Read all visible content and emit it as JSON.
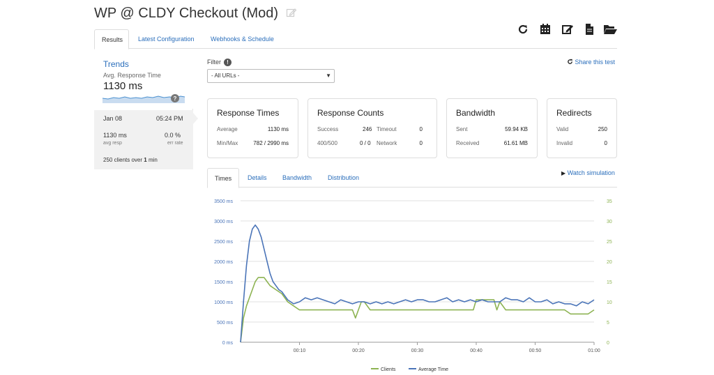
{
  "header": {
    "title": "WP @ CLDY Checkout (Mod)",
    "edit_icon": "edit-icon"
  },
  "tabs": [
    {
      "label": "Results",
      "active": true
    },
    {
      "label": "Latest Configuration",
      "active": false
    },
    {
      "label": "Webhooks & Schedule",
      "active": false
    }
  ],
  "toolbar": {
    "icons": [
      "refresh-icon",
      "calendar-icon",
      "edit-icon",
      "file-icon",
      "folder-open-icon"
    ]
  },
  "sidebar": {
    "trends_label": "Trends",
    "avg_label": "Avg. Response Time",
    "avg_value": "1130 ms",
    "spark_badge": "?",
    "date": "Jan 08",
    "time": "05:24 PM",
    "avg_resp_value": "1130 ms",
    "avg_resp_label": "avg resp",
    "err_rate_value": "0.0 %",
    "err_rate_label": "err rate",
    "clients_prefix": "250 clients over ",
    "clients_duration": "1",
    "clients_unit": " min"
  },
  "filter": {
    "label": "Filter",
    "info": "!",
    "selected": "- All URLs -"
  },
  "share_label": "Share this test",
  "cards": {
    "response_times": {
      "title": "Response Times",
      "avg_label": "Average",
      "avg_value": "1130 ms",
      "minmax_label": "Min/Max",
      "minmax_value": "782 / 2990 ms"
    },
    "response_counts": {
      "title": "Response Counts",
      "success_label": "Success",
      "success_value": "246",
      "timeout_label": "Timeout",
      "timeout_value": "0",
      "c400_label": "400/500",
      "c400_value": "0 / 0",
      "network_label": "Network",
      "network_value": "0"
    },
    "bandwidth": {
      "title": "Bandwidth",
      "sent_label": "Sent",
      "sent_value": "59.94 KB",
      "received_label": "Received",
      "received_value": "61.61 MB"
    },
    "redirects": {
      "title": "Redirects",
      "valid_label": "Valid",
      "valid_value": "250",
      "invalid_label": "Invalid",
      "invalid_value": "0"
    }
  },
  "chart_tabs": [
    {
      "label": "Times",
      "active": true
    },
    {
      "label": "Details",
      "active": false
    },
    {
      "label": "Bandwidth",
      "active": false
    },
    {
      "label": "Distribution",
      "active": false
    }
  ],
  "watch_label": "Watch simulation",
  "chart_data": {
    "type": "line",
    "y_left_ticks": [
      "0 ms",
      "500 ms",
      "1000 ms",
      "1500 ms",
      "2000 ms",
      "2500 ms",
      "3000 ms",
      "3500 ms"
    ],
    "y_right_ticks": [
      "0",
      "5",
      "10",
      "15",
      "20",
      "25",
      "30",
      "35"
    ],
    "x_ticks": [
      "00:10",
      "00:20",
      "00:30",
      "00:40",
      "00:50",
      "01:00"
    ],
    "xlim": [
      0,
      60
    ],
    "ylim_left": [
      0,
      3500
    ],
    "ylim_right": [
      0,
      35
    ],
    "colors": {
      "clients": "#8db352",
      "avg_time": "#4a74b8"
    },
    "series": [
      {
        "name": "Clients",
        "axis": "right",
        "x": [
          0,
          0.5,
          1,
          1.5,
          2,
          2.5,
          3,
          3.5,
          4,
          4.5,
          5,
          6,
          7,
          8,
          9,
          10,
          11,
          12,
          13,
          14,
          15,
          16,
          17,
          18,
          19,
          19.5,
          20,
          20.5,
          21,
          22,
          23,
          24,
          25,
          26,
          27,
          28,
          29,
          30,
          31,
          32,
          33,
          34,
          35,
          36,
          37,
          38,
          39,
          39.5,
          40,
          41,
          42,
          43,
          43.5,
          44,
          45,
          46,
          47,
          48,
          49,
          50,
          51,
          52,
          53,
          54,
          55,
          56,
          57,
          58,
          59,
          60
        ],
        "y": [
          0,
          6,
          9,
          11,
          13,
          15,
          16,
          16,
          16,
          15,
          14,
          13,
          12,
          10,
          9,
          8,
          8,
          8,
          8,
          8,
          8,
          8,
          8,
          8,
          8,
          6,
          8,
          10,
          10,
          8,
          8,
          8,
          8,
          8,
          8,
          8,
          8,
          8,
          8,
          8,
          8,
          8,
          8,
          8,
          8,
          8,
          8,
          8,
          10.5,
          10.5,
          10.5,
          10.5,
          8,
          10,
          8,
          8,
          8,
          8,
          8,
          8,
          8,
          8,
          8,
          8,
          8,
          7,
          7,
          7,
          7,
          8
        ]
      },
      {
        "name": "Average Time",
        "axis": "left",
        "x": [
          0,
          0.5,
          1,
          1.5,
          2,
          2.5,
          3,
          3.5,
          4,
          4.5,
          5,
          5.5,
          6,
          6.5,
          7,
          7.5,
          8,
          9,
          10,
          11,
          12,
          13,
          14,
          15,
          16,
          17,
          18,
          19,
          20,
          21,
          22,
          23,
          24,
          25,
          26,
          27,
          28,
          29,
          30,
          31,
          32,
          33,
          34,
          35,
          36,
          37,
          38,
          39,
          40,
          41,
          42,
          43,
          44,
          45,
          46,
          47,
          48,
          49,
          50,
          51,
          52,
          53,
          54,
          55,
          56,
          57,
          58,
          59,
          60
        ],
        "y": [
          0,
          1000,
          1900,
          2500,
          2800,
          2900,
          2800,
          2600,
          2300,
          2000,
          1700,
          1500,
          1400,
          1300,
          1250,
          1150,
          1050,
          950,
          1000,
          1100,
          1050,
          1100,
          1050,
          1000,
          950,
          1050,
          1000,
          950,
          1000,
          1000,
          950,
          1000,
          950,
          1000,
          950,
          1000,
          1050,
          1000,
          1050,
          1050,
          1000,
          1000,
          1050,
          1100,
          1000,
          1050,
          1000,
          1050,
          1000,
          1050,
          1000,
          1000,
          1000,
          1100,
          1050,
          1050,
          1000,
          1100,
          1000,
          1000,
          1050,
          950,
          1000,
          950,
          950,
          900,
          1000,
          950,
          1050
        ]
      }
    ]
  }
}
